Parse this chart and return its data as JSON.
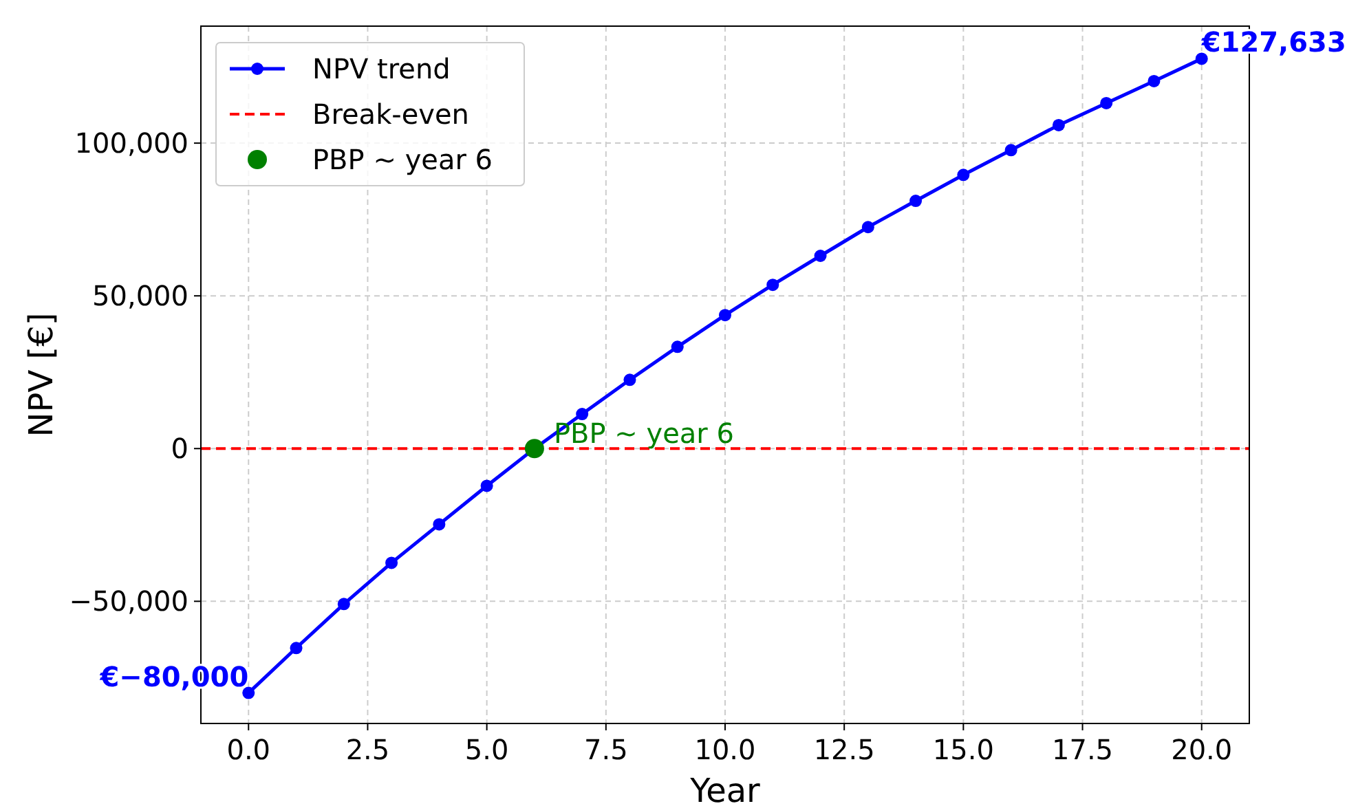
{
  "chart_data": {
    "type": "line",
    "xlabel": "Year",
    "ylabel": "NPV [€]",
    "x": [
      0,
      1,
      2,
      3,
      4,
      5,
      6,
      7,
      8,
      9,
      10,
      11,
      12,
      13,
      14,
      15,
      16,
      17,
      18,
      19,
      20
    ],
    "series": [
      {
        "name": "NPV trend",
        "color": "#0000ff",
        "marker": "circle",
        "line_style": "solid",
        "values": [
          -80000,
          -65300,
          -50900,
          -37400,
          -24800,
          -12200,
          0,
          11300,
          22500,
          33300,
          43700,
          53600,
          63100,
          72500,
          81100,
          89600,
          97700,
          105900,
          113100,
          120300,
          127633
        ]
      },
      {
        "name": "PBP ~ year 6",
        "type": "scatter",
        "color": "#008000",
        "marker": "circle",
        "x": [
          6
        ],
        "values": [
          0
        ]
      }
    ],
    "ref_lines": [
      {
        "axis": "y",
        "value": 0,
        "label": "Break-even",
        "color": "#ff0000",
        "line_style": "dashed"
      }
    ],
    "annotations": [
      {
        "text": "€−80,000",
        "x": 0,
        "y": -80000
      },
      {
        "text": "€127,633",
        "x": 20,
        "y": 127633
      },
      {
        "text": "PBP ~ year 6",
        "x": 6,
        "y": 0
      }
    ],
    "xlim": [
      -1,
      21
    ],
    "xticks": [
      {
        "value": 0,
        "label": "0.0"
      },
      {
        "value": 2.5,
        "label": "2.5"
      },
      {
        "value": 5,
        "label": "5.0"
      },
      {
        "value": 7.5,
        "label": "7.5"
      },
      {
        "value": 10,
        "label": "10.0"
      },
      {
        "value": 12.5,
        "label": "12.5"
      },
      {
        "value": 15,
        "label": "15.0"
      },
      {
        "value": 17.5,
        "label": "17.5"
      },
      {
        "value": 20,
        "label": "20.0"
      }
    ],
    "ylim": [
      -90000,
      138300
    ],
    "yticks": [
      {
        "value": -50000,
        "label": "−50,000"
      },
      {
        "value": 0,
        "label": "0"
      },
      {
        "value": 50000,
        "label": "50,000"
      },
      {
        "value": 100000,
        "label": "100,000"
      }
    ],
    "grid": true,
    "legend": "top left"
  }
}
